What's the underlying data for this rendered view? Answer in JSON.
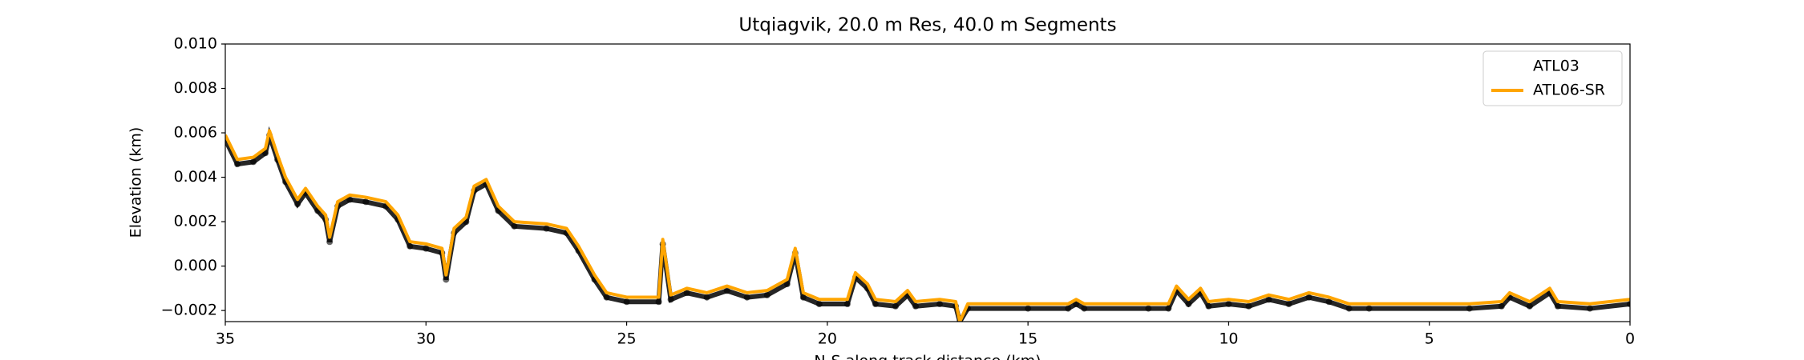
{
  "chart_data": {
    "type": "line",
    "title": "Utqiagvik, 20.0 m Res, 40.0 m Segments",
    "x_label": "N-S along track distance (km)",
    "y_label": "Elevation (km)",
    "xlim": [
      35,
      0
    ],
    "ylim": [
      -0.0025,
      0.01
    ],
    "xticks": [
      35,
      30,
      25,
      20,
      15,
      10,
      5,
      0
    ],
    "yticks": [
      {
        "value": -0.002,
        "label": "−0.002"
      },
      {
        "value": 0.0,
        "label": "0.000"
      },
      {
        "value": 0.002,
        "label": "0.002"
      },
      {
        "value": 0.004,
        "label": "0.004"
      },
      {
        "value": 0.006,
        "label": "0.006"
      },
      {
        "value": 0.008,
        "label": "0.008"
      },
      {
        "value": 0.01,
        "label": "0.010"
      }
    ],
    "legend": "upper right",
    "x": [
      35,
      34.7,
      34.3,
      34,
      33.9,
      33.7,
      33.5,
      33.2,
      33,
      32.7,
      32.5,
      32.4,
      32.2,
      31.9,
      31.5,
      31,
      30.7,
      30.4,
      30,
      29.6,
      29.5,
      29.3,
      29,
      28.8,
      28.5,
      28.2,
      27.8,
      27,
      26.5,
      26.2,
      25.8,
      25.5,
      25,
      24.2,
      24.1,
      23.9,
      23.5,
      23,
      22.5,
      22,
      21.5,
      21,
      20.8,
      20.6,
      20.2,
      19.5,
      19.3,
      19,
      18.8,
      18.3,
      18,
      17.8,
      17.2,
      16.8,
      16.7,
      16.5,
      15,
      14,
      13.8,
      13.6,
      12,
      11.5,
      11.3,
      11,
      10.7,
      10.5,
      10,
      9.5,
      9,
      8.5,
      8,
      7.5,
      7,
      6.5,
      4,
      3.2,
      3,
      2.5,
      2,
      1.8,
      1,
      0
    ],
    "series": [
      {
        "name": "ATL03",
        "style": "points",
        "color": "#000000",
        "values": [
          0.0058,
          0.0047,
          0.0048,
          0.0052,
          0.006,
          0.0049,
          0.0039,
          0.0029,
          0.0034,
          0.0026,
          0.0022,
          0.0012,
          0.0028,
          0.0031,
          0.003,
          0.0028,
          0.0022,
          0.001,
          0.0009,
          0.0007,
          -0.0005,
          0.0016,
          0.0021,
          0.0035,
          0.0038,
          0.0026,
          0.0019,
          0.0018,
          0.0016,
          0.0008,
          -0.0005,
          -0.0013,
          -0.0015,
          -0.0015,
          0.0011,
          -0.0014,
          -0.0011,
          -0.0013,
          -0.001,
          -0.0013,
          -0.0012,
          -0.0007,
          0.0007,
          -0.0013,
          -0.0016,
          -0.0016,
          -0.0004,
          -0.0009,
          -0.0016,
          -0.0017,
          -0.0012,
          -0.0017,
          -0.0016,
          -0.0017,
          -0.0024,
          -0.0018,
          -0.0018,
          -0.0018,
          -0.0016,
          -0.0018,
          -0.0018,
          -0.0018,
          -0.001,
          -0.0016,
          -0.0011,
          -0.0017,
          -0.0016,
          -0.0017,
          -0.0014,
          -0.0016,
          -0.0013,
          -0.0015,
          -0.0018,
          -0.0018,
          -0.0018,
          -0.0017,
          -0.0013,
          -0.0017,
          -0.0011,
          -0.0017,
          -0.0018,
          -0.0016
        ]
      },
      {
        "name": "ATL06-SR",
        "style": "line",
        "color": "#ffa500",
        "values": [
          0.0059,
          0.0048,
          0.0049,
          0.0053,
          0.0061,
          0.005,
          0.004,
          0.003,
          0.0035,
          0.0027,
          0.0023,
          0.0013,
          0.0029,
          0.0032,
          0.0031,
          0.0029,
          0.0023,
          0.0011,
          0.001,
          0.0008,
          -0.0004,
          0.0017,
          0.0022,
          0.0036,
          0.0039,
          0.0027,
          0.002,
          0.0019,
          0.0017,
          0.0009,
          -0.0004,
          -0.0012,
          -0.0014,
          -0.0014,
          0.0012,
          -0.0013,
          -0.001,
          -0.0012,
          -0.0009,
          -0.0012,
          -0.0011,
          -0.0006,
          0.0008,
          -0.0012,
          -0.0015,
          -0.0015,
          -0.0003,
          -0.0008,
          -0.0015,
          -0.0016,
          -0.0011,
          -0.0016,
          -0.0015,
          -0.0016,
          -0.0025,
          -0.0017,
          -0.0017,
          -0.0017,
          -0.0015,
          -0.0017,
          -0.0017,
          -0.0017,
          -0.0009,
          -0.0015,
          -0.001,
          -0.0016,
          -0.0015,
          -0.0016,
          -0.0013,
          -0.0015,
          -0.0012,
          -0.0014,
          -0.0017,
          -0.0017,
          -0.0017,
          -0.0016,
          -0.0012,
          -0.0016,
          -0.001,
          -0.0016,
          -0.0017,
          -0.0015
        ]
      }
    ]
  }
}
